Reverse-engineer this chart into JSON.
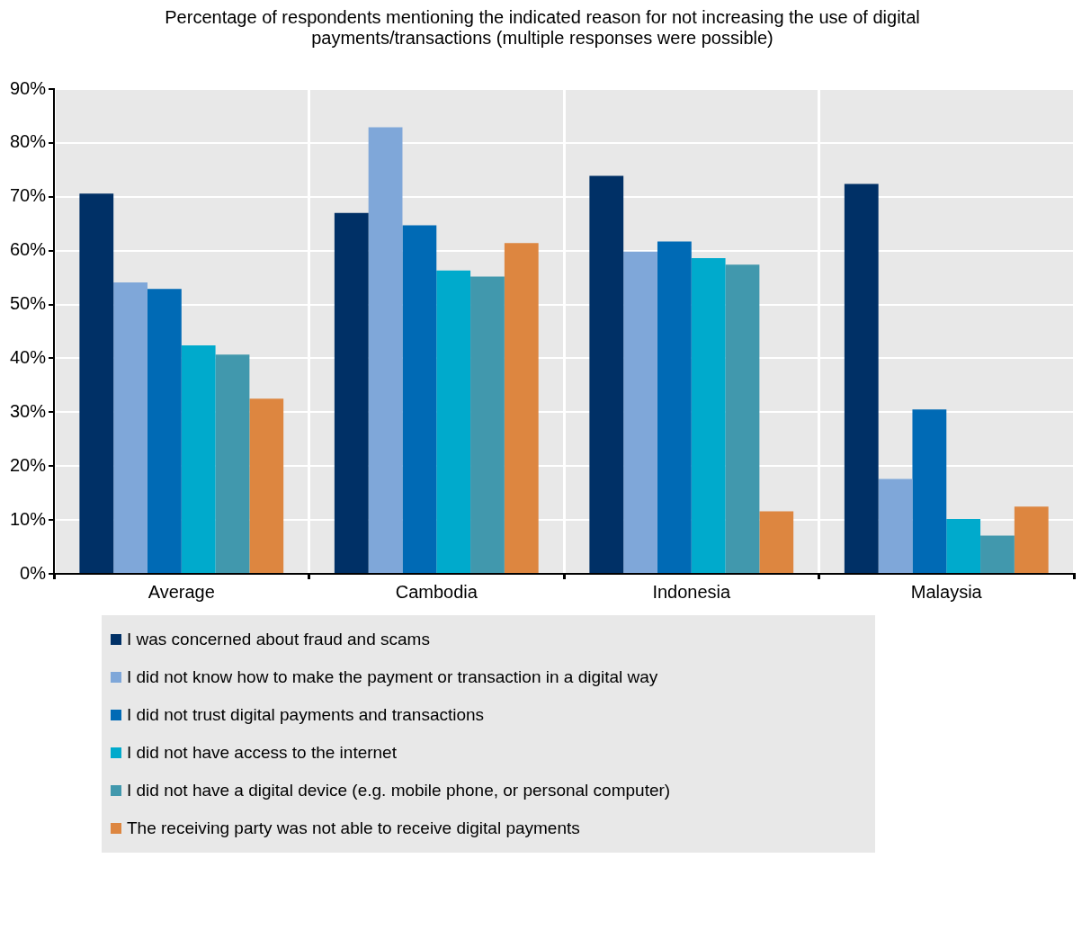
{
  "chart_data": {
    "type": "bar",
    "title": "Percentage of respondents mentioning the indicated reason for not increasing the use of digital payments/transactions (multiple responses were possible)",
    "categories": [
      "Average",
      "Cambodia",
      "Indonesia",
      "Malaysia"
    ],
    "series": [
      {
        "name": "I was concerned about fraud and scams",
        "color": "#003066",
        "values": [
          70.6,
          67.0,
          73.9,
          72.4
        ]
      },
      {
        "name": "I did not know how to make the payment or transaction in a digital way",
        "color": "#7fa7d9",
        "values": [
          54.1,
          82.9,
          59.8,
          17.6
        ]
      },
      {
        "name": "I did not trust digital payments and transactions",
        "color": "#006ab5",
        "values": [
          52.9,
          64.7,
          61.7,
          30.5
        ]
      },
      {
        "name": "I did not have access to the internet",
        "color": "#00aacc",
        "values": [
          42.4,
          56.3,
          58.6,
          10.2
        ]
      },
      {
        "name": "I did not have a digital device (e.g. mobile phone, or personal computer)",
        "color": "#4198ad",
        "values": [
          40.7,
          55.2,
          57.4,
          7.1
        ]
      },
      {
        "name": "The receiving party was not able to receive digital payments",
        "color": "#dd8640",
        "values": [
          32.5,
          61.4,
          11.6,
          12.5
        ]
      }
    ],
    "ylim": [
      0,
      90
    ],
    "yticks": [
      {
        "value": 0,
        "label": "0%"
      },
      {
        "value": 10,
        "label": "10%"
      },
      {
        "value": 20,
        "label": "20%"
      },
      {
        "value": 30,
        "label": "30%"
      },
      {
        "value": 40,
        "label": "40%"
      },
      {
        "value": 50,
        "label": "50%"
      },
      {
        "value": 60,
        "label": "60%"
      },
      {
        "value": 70,
        "label": "70%"
      },
      {
        "value": 80,
        "label": "80%"
      },
      {
        "value": 90,
        "label": "90%"
      }
    ],
    "grid": true,
    "legend": "bottom"
  }
}
